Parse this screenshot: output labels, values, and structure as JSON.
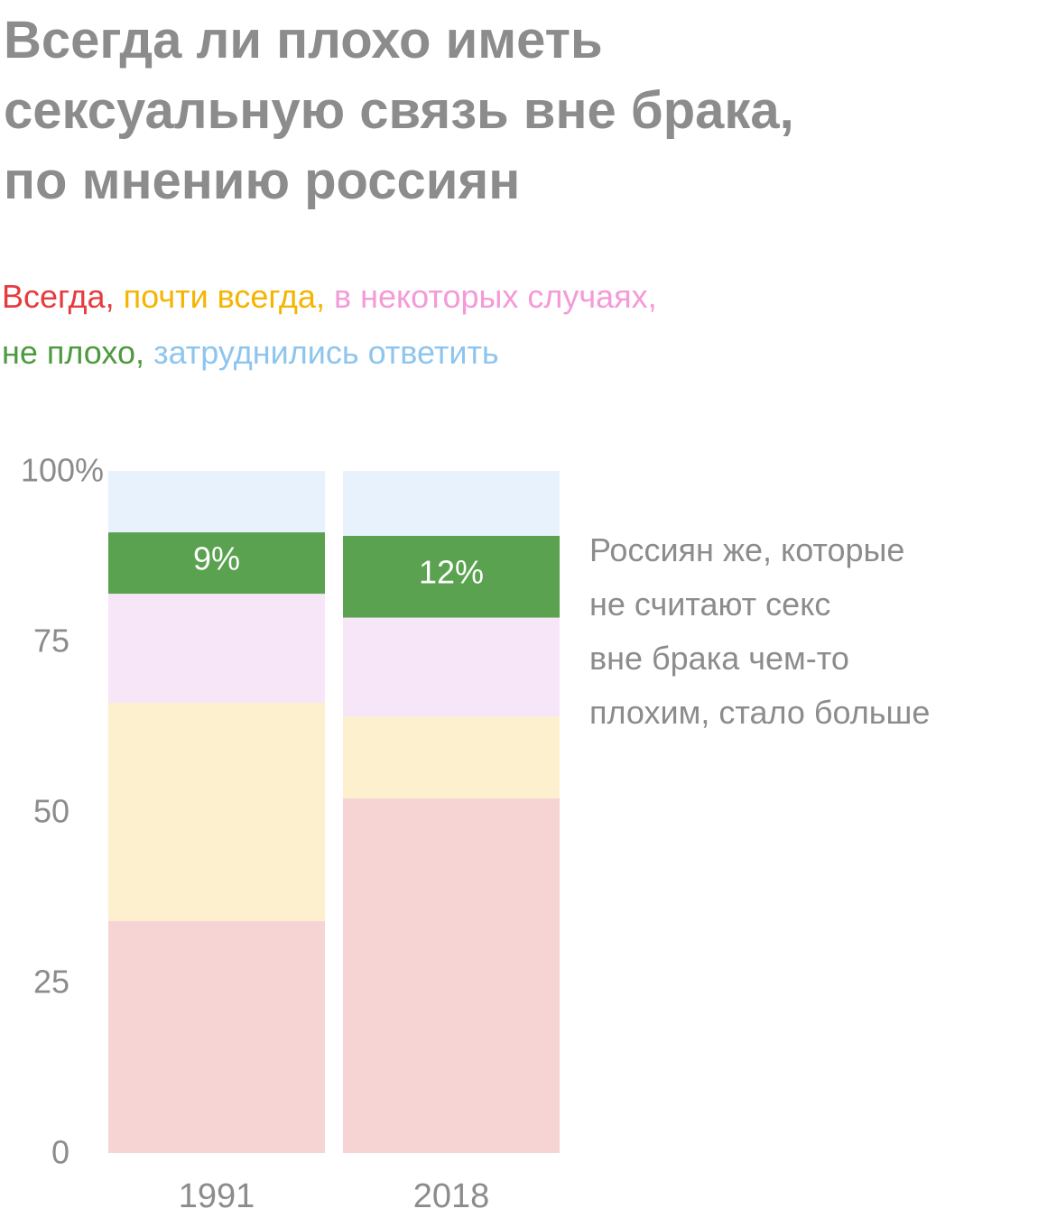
{
  "title": {
    "lines": [
      "Всегда ли плохо иметь",
      "сексуальную связь вне брака,",
      "по мнению россиян"
    ]
  },
  "legend": {
    "items": [
      {
        "label": "Всегда",
        "sep": ", ",
        "color": "#e63b3f"
      },
      {
        "label": "почти всегда",
        "sep": ", ",
        "color": "#f5b400"
      },
      {
        "label": "в некоторых случаях",
        "sep": ",",
        "color": "#f59ad8"
      },
      {
        "label": "не плохо",
        "sep": ", ",
        "color": "#4e9a3e"
      },
      {
        "label": "затруднились ответить",
        "sep": "",
        "color": "#8ec5ef"
      }
    ]
  },
  "note": {
    "lines": [
      "Россиян же, которые",
      "не считают секс",
      "вне брака чем-то",
      "плохим, стало больше"
    ]
  },
  "chart_data": {
    "type": "bar",
    "stacked": true,
    "categories": [
      "1991",
      "2018"
    ],
    "y_ticks": [
      "0",
      "25",
      "50",
      "75",
      "100%"
    ],
    "ylim": [
      0,
      100
    ],
    "series": [
      {
        "name": "Всегда",
        "values": [
          34,
          52
        ],
        "color": "#f7d4d4"
      },
      {
        "name": "почти всегда",
        "values": [
          32,
          12
        ],
        "color": "#fdf0ce"
      },
      {
        "name": "в некоторых случаях",
        "values": [
          16,
          14.5
        ],
        "color": "#f7e6f8"
      },
      {
        "name": "не плохо",
        "values": [
          9,
          12
        ],
        "color": "#5aa150",
        "labels": [
          "9%",
          "12%"
        ]
      },
      {
        "name": "затруднились ответить",
        "values": [
          9,
          9.5
        ],
        "color": "#e8f2fc"
      }
    ]
  }
}
